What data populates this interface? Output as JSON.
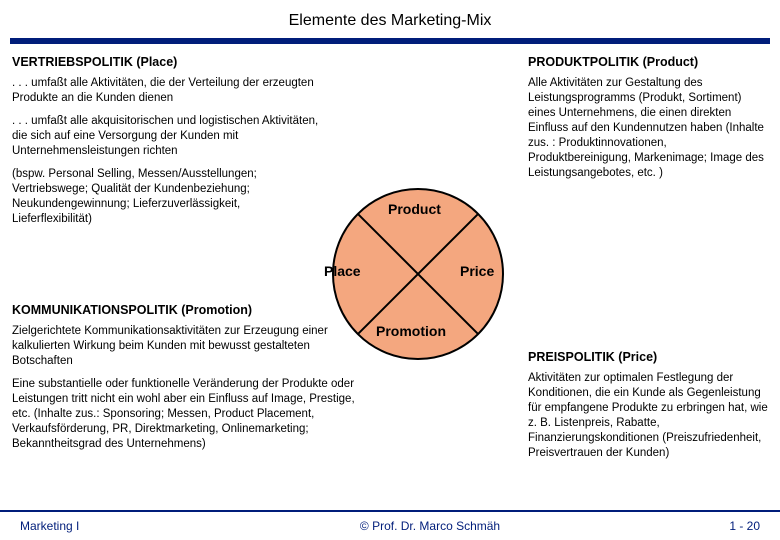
{
  "title": "Elemente des Marketing-Mix",
  "title_bar_color": "#001d7a",
  "chart": {
    "type": "pie",
    "slices": 4,
    "labels": {
      "top": "Product",
      "right": "Price",
      "bottom": "Promotion",
      "left": "Place"
    },
    "fill_color": "#f4a77f",
    "stroke_color": "#000000",
    "stroke_width": 2,
    "radius": 85,
    "label_fontsize": 14,
    "label_fontweight": "bold"
  },
  "left": {
    "heading": "VERTRIEBSPOLITIK (Place)",
    "p1": ". . . umfaßt alle Aktivitäten, die der Verteilung der erzeugten Produkte an die Kunden dienen",
    "p2": ". . . umfaßt alle akquisitorischen und logistischen Aktivitäten, die sich auf eine Versorgung der Kunden mit Unternehmensleistungen richten",
    "p3": "(bspw. Personal Selling, Messen/Ausstellungen; Vertriebswege; Qualität der Kundenbeziehung; Neukundengewinnung; Lieferzuverlässigkeit, Lieferflexibilität)"
  },
  "lower_left": {
    "heading": "KOMMUNIKATIONSPOLITIK (Promotion)",
    "p1": "Zielgerichtete Kommunikationsaktivitäten zur Erzeugung einer kalkulierten Wirkung beim Kunden mit bewusst gestalteten Botschaften",
    "p2": "Eine substantielle oder funktionelle Veränderung der Produkte oder Leistungen tritt nicht ein wohl aber ein Einfluss auf Image, Prestige, etc. (Inhalte zus.: Sponsoring; Messen, Product Placement, Verkaufsförderung, PR, Direktmarketing, Onlinemarketing; Bekanntheitsgrad des Unternehmens)"
  },
  "right": {
    "heading": "PRODUKTPOLITIK (Product)",
    "p1": "Alle Aktivitäten zur Gestaltung des Leistungsprogramms (Produkt, Sortiment) eines Unternehmens, die einen direkten Einfluss auf den Kundennutzen haben (Inhalte zus. : Produktinnovationen, Produktbereinigung, Markenimage; Image des Leistungsangebotes, etc. )"
  },
  "right_lower": {
    "heading": "PREISPOLITIK (Price)",
    "p1": "Aktivitäten zur optimalen Festlegung der Konditionen, die ein Kunde als Gegenleistung für empfangene Produkte zu erbringen hat, wie z. B. Listenpreis, Rabatte, Finanzierungskonditionen (Preiszufriedenheit, Preisvertrauen der Kunden)"
  },
  "footer": {
    "left": "Marketing I",
    "mid": "© Prof. Dr. Marco Schmäh",
    "right": "1 - 20",
    "color": "#001d7a"
  }
}
